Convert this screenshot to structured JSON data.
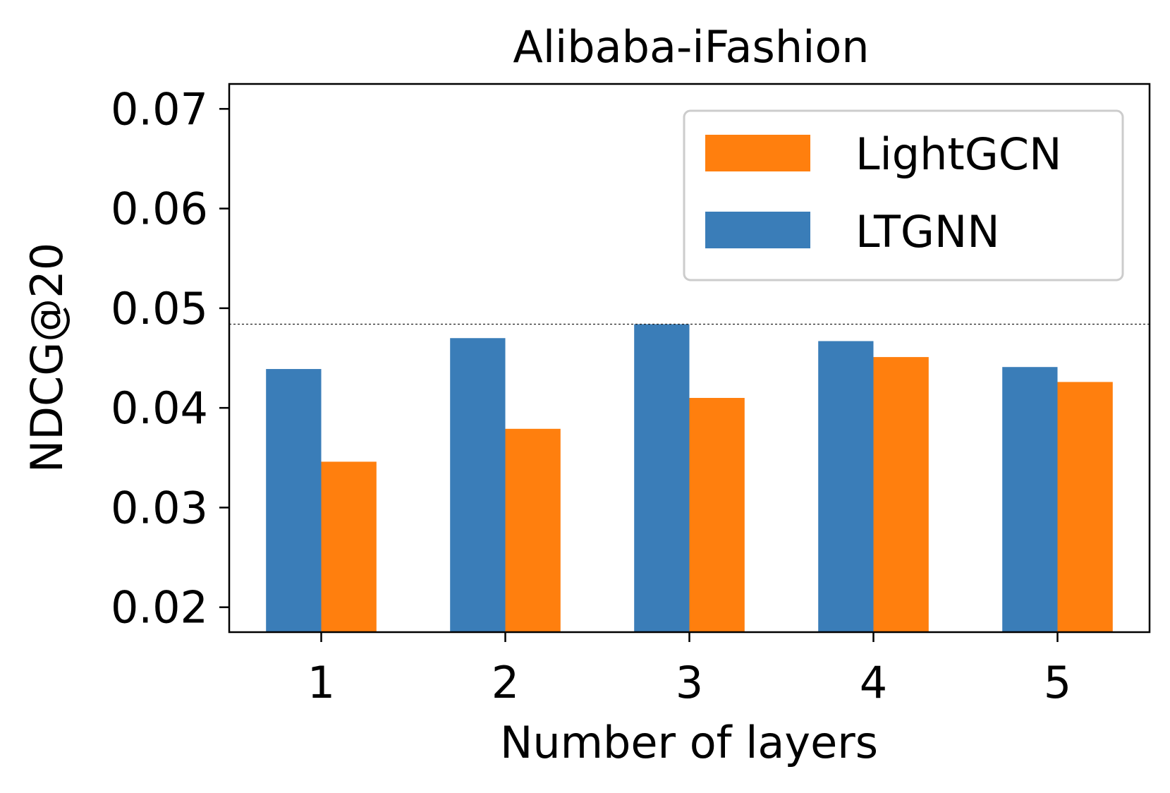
{
  "chart_data": {
    "type": "bar",
    "title": "Alibaba-iFashion",
    "xlabel": "Number of layers",
    "ylabel": "NDCG@20",
    "categories": [
      "1",
      "2",
      "3",
      "4",
      "5"
    ],
    "series": [
      {
        "name": "LTGNN",
        "color": "#3A7DB8",
        "values": [
          0.0439,
          0.047,
          0.0484,
          0.0467,
          0.0441
        ]
      },
      {
        "name": "LightGCN",
        "color": "#FF7F0E",
        "values": [
          0.0346,
          0.0379,
          0.041,
          0.0451,
          0.0426
        ]
      }
    ],
    "ylim": [
      0.0175,
      0.0725
    ],
    "yticks": [
      "0.02",
      "0.03",
      "0.04",
      "0.05",
      "0.06",
      "0.07"
    ],
    "reference_line": 0.0484,
    "legend_order": [
      "LightGCN",
      "LTGNN"
    ],
    "legend_position": "top-right",
    "grid": false
  }
}
